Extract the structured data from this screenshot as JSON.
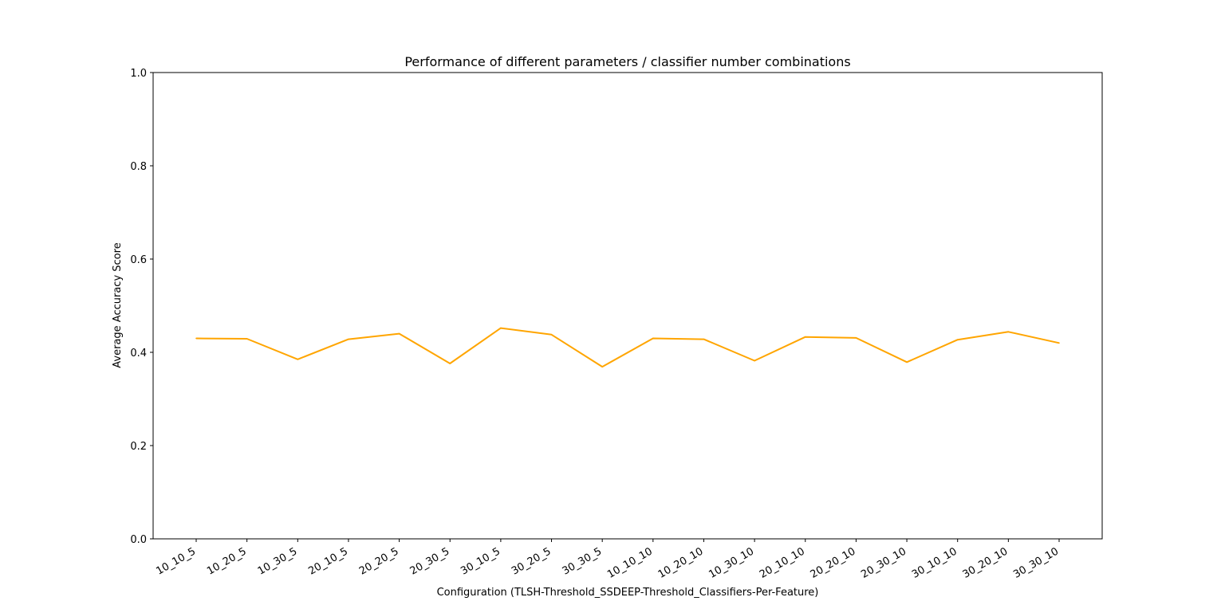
{
  "chart_data": {
    "type": "line",
    "title": "Performance of different parameters / classifier number combinations",
    "xlabel": "Configuration (TLSH-Threshold_SSDEEP-Threshold_Classifiers-Per-Feature)",
    "ylabel": "Average Accuracy Score",
    "categories": [
      "10_10_5",
      "10_20_5",
      "10_30_5",
      "20_10_5",
      "20_20_5",
      "20_30_5",
      "30_10_5",
      "30_20_5",
      "30_30_5",
      "10_10_10",
      "10_20_10",
      "10_30_10",
      "20_10_10",
      "20_20_10",
      "20_30_10",
      "30_10_10",
      "30_20_10",
      "30_30_10"
    ],
    "series": [
      {
        "values": [
          0.43,
          0.429,
          0.385,
          0.428,
          0.44,
          0.376,
          0.452,
          0.438,
          0.369,
          0.43,
          0.428,
          0.382,
          0.433,
          0.431,
          0.379,
          0.427,
          0.444,
          0.42
        ],
        "color": "#ffa500"
      }
    ],
    "ylim": [
      0.0,
      1.0
    ],
    "yticks": [
      "0.0",
      "0.2",
      "0.4",
      "0.6",
      "0.8",
      "1.0"
    ],
    "grid": false,
    "legend": "none"
  }
}
